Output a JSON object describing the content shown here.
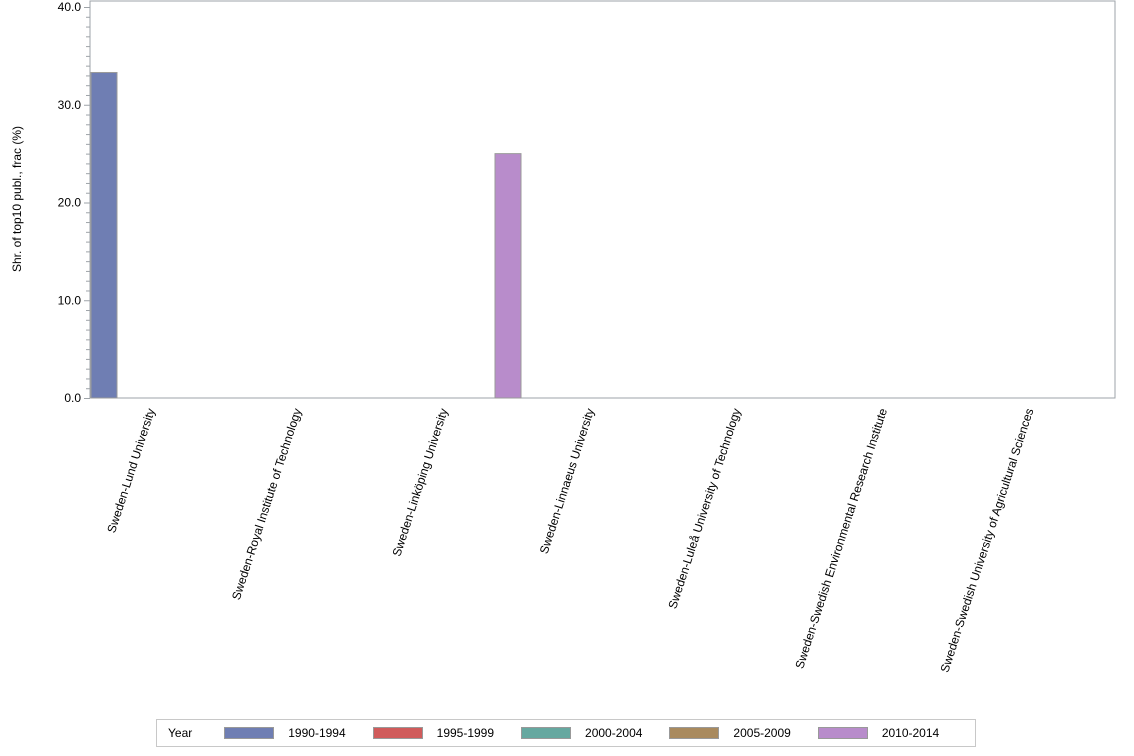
{
  "chart_data": {
    "type": "bar",
    "title": "",
    "xlabel": "",
    "ylabel": "Shr. of top10 publ., frac (%)",
    "ylim": [
      0,
      40
    ],
    "yticks": [
      "0.0",
      "10.0",
      "20.0",
      "30.0",
      "40.0"
    ],
    "grid": false,
    "legend_position": "bottom",
    "legend_title": "Year",
    "categories": [
      "Sweden-Lund University",
      "Sweden-Royal Institute of Technology",
      "Sweden-Linköping University",
      "Sweden-Linnaeus University",
      "Sweden-Luleå University of Technology",
      "Sweden-Swedish Environmental Research Institute",
      "Sweden-Swedish University of Agricultural Sciences"
    ],
    "series": [
      {
        "name": "1990-1994",
        "color": "#6f7eb3",
        "values": [
          33.3,
          null,
          null,
          null,
          null,
          null,
          null
        ]
      },
      {
        "name": "1995-1999",
        "color": "#d05b5b",
        "values": [
          null,
          null,
          null,
          null,
          null,
          null,
          null
        ]
      },
      {
        "name": "2000-2004",
        "color": "#66a8a0",
        "values": [
          null,
          null,
          null,
          null,
          null,
          null,
          null
        ]
      },
      {
        "name": "2005-2009",
        "color": "#a98a5e",
        "values": [
          null,
          null,
          null,
          null,
          null,
          null,
          null
        ]
      },
      {
        "name": "2010-2014",
        "color": "#b88ccb",
        "values": [
          null,
          null,
          25.0,
          null,
          null,
          null,
          null
        ]
      }
    ]
  }
}
